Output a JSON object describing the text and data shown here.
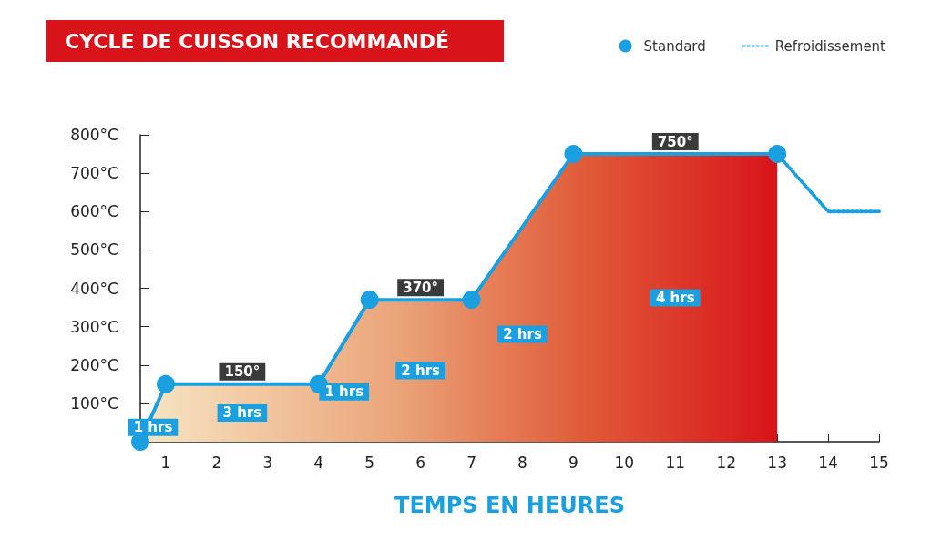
{
  "chart_data": {
    "type": "area",
    "title": "CYCLE DE CUISSON RECOMMANDÉ",
    "xlabel": "TEMPS EN HEURES",
    "series": [
      {
        "name": "Standard",
        "type": "area",
        "color": "#1a9fe0",
        "x": [
          0.5,
          1,
          4,
          5,
          7,
          9,
          13
        ],
        "values": [
          0,
          150,
          150,
          370,
          370,
          750,
          750
        ],
        "marker": "circle",
        "line_style": "solid"
      },
      {
        "name": "Refroidissement",
        "type": "line",
        "color": "#1a9fe0",
        "x": [
          13,
          14,
          15
        ],
        "values": [
          750,
          600,
          600
        ],
        "marker": "none",
        "line_style": "dotted"
      }
    ],
    "xlim": [
      0.5,
      15
    ],
    "xticks": [
      1,
      2,
      3,
      4,
      5,
      6,
      7,
      8,
      9,
      10,
      11,
      12,
      13,
      14,
      15
    ],
    "ylim": [
      0,
      800
    ],
    "yticks": [
      {
        "value": 100,
        "label": "100°C"
      },
      {
        "value": 200,
        "label": "200°C"
      },
      {
        "value": 300,
        "label": "300°C"
      },
      {
        "value": 400,
        "label": "400°C"
      },
      {
        "value": 500,
        "label": "500°C"
      },
      {
        "value": 600,
        "label": "600°C"
      },
      {
        "value": 700,
        "label": "700°C"
      },
      {
        "value": 800,
        "label": "800°C"
      }
    ],
    "annotations": [
      {
        "text": "150°",
        "x": 2.5,
        "y": 150
      },
      {
        "text": "370°",
        "x": 6,
        "y": 370
      },
      {
        "text": "750°",
        "x": 11,
        "y": 750
      },
      "1 hrs",
      "3 hrs",
      "1 hrs",
      "2 hrs",
      "2 hrs",
      "4 hrs"
    ],
    "grid": false,
    "legend": "top right"
  }
}
